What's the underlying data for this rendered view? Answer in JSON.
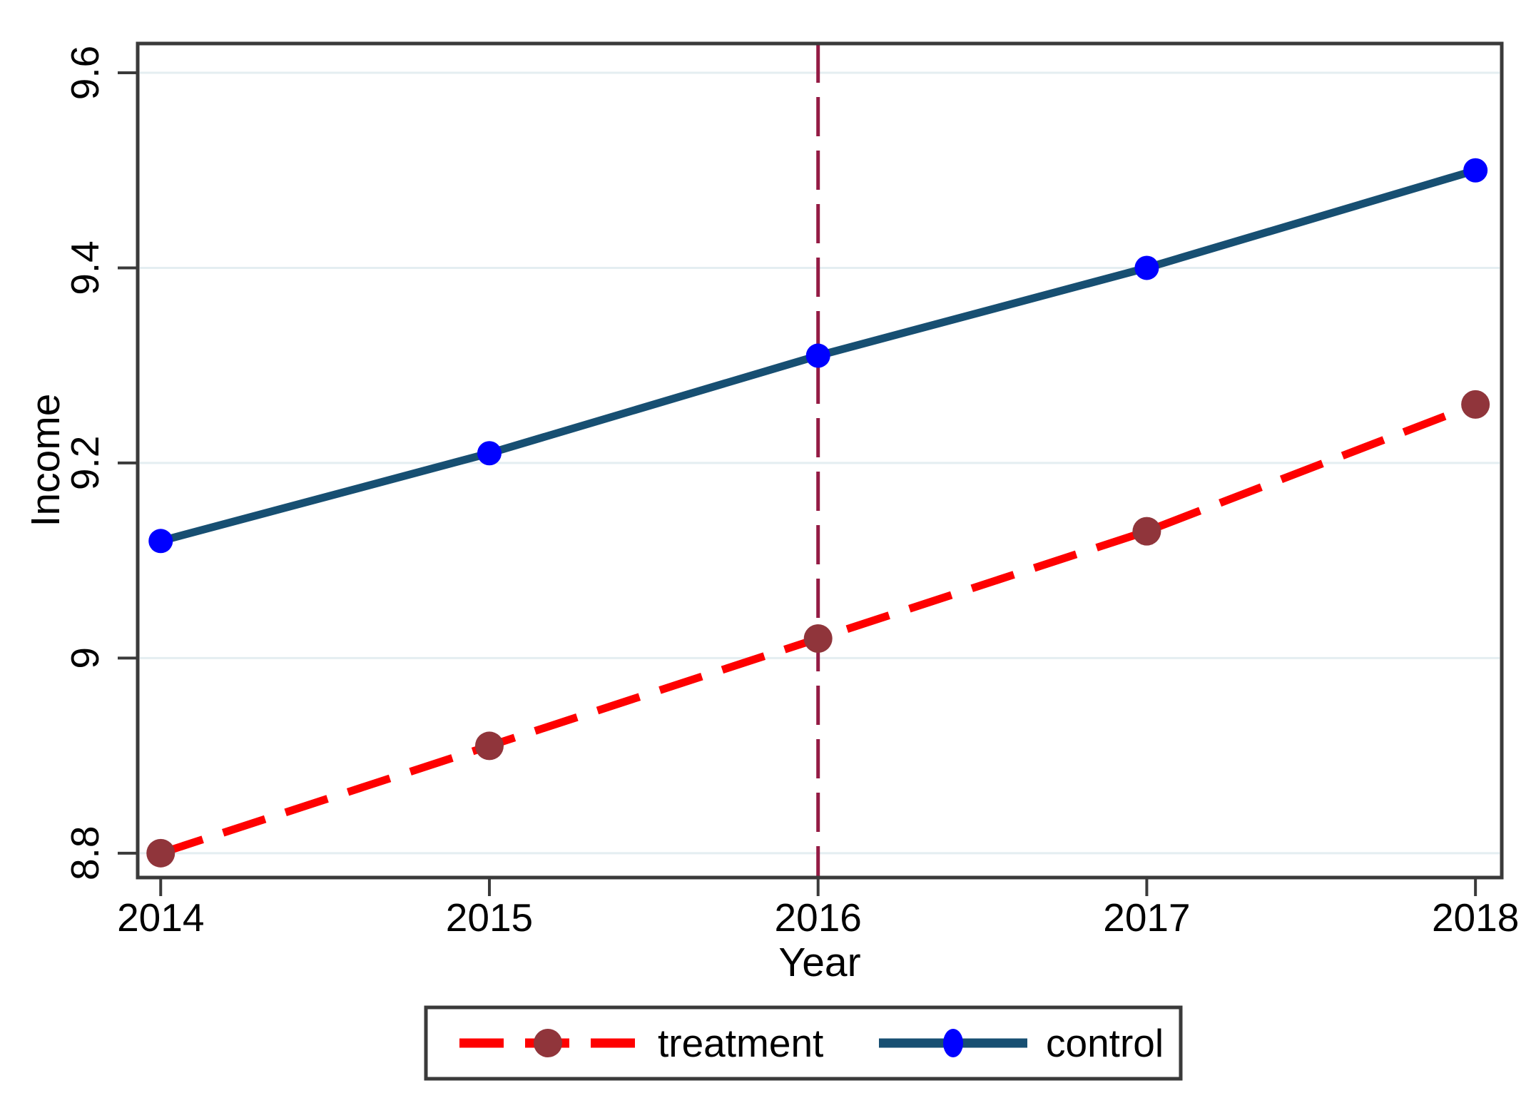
{
  "chart_data": {
    "type": "line",
    "title": "",
    "xlabel": "Year",
    "ylabel": "Income",
    "x": [
      2014,
      2015,
      2016,
      2017,
      2018
    ],
    "series": [
      {
        "name": "treatment",
        "values": [
          8.8,
          8.91,
          9.02,
          9.13,
          9.26
        ],
        "line_color": "#fe0000",
        "marker_color": "#90353b",
        "line_style": "dashed"
      },
      {
        "name": "control",
        "values": [
          9.12,
          9.21,
          9.31,
          9.4,
          9.5
        ],
        "line_color": "#174f72",
        "marker_color": "#0000ff",
        "line_style": "solid"
      }
    ],
    "x_tick_labels": [
      "2014",
      "2015",
      "2016",
      "2017",
      "2018"
    ],
    "x_tick_values": [
      2014,
      2015,
      2016,
      2017,
      2018
    ],
    "y_tick_labels": [
      "8.8",
      "9",
      "9.2",
      "9.4",
      "9.6"
    ],
    "y_tick_values": [
      8.8,
      9.0,
      9.2,
      9.4,
      9.6
    ],
    "xlim": [
      2013.93,
      2018.08
    ],
    "ylim": [
      8.775,
      9.63
    ],
    "ref_line_x": 2016,
    "ref_line_color": "#941b44",
    "grid": true,
    "grid_color": "#e4eef1",
    "axis_color": "#3a3a3a",
    "legend_position": "bottom",
    "legend_entries": [
      "treatment",
      "control"
    ]
  }
}
